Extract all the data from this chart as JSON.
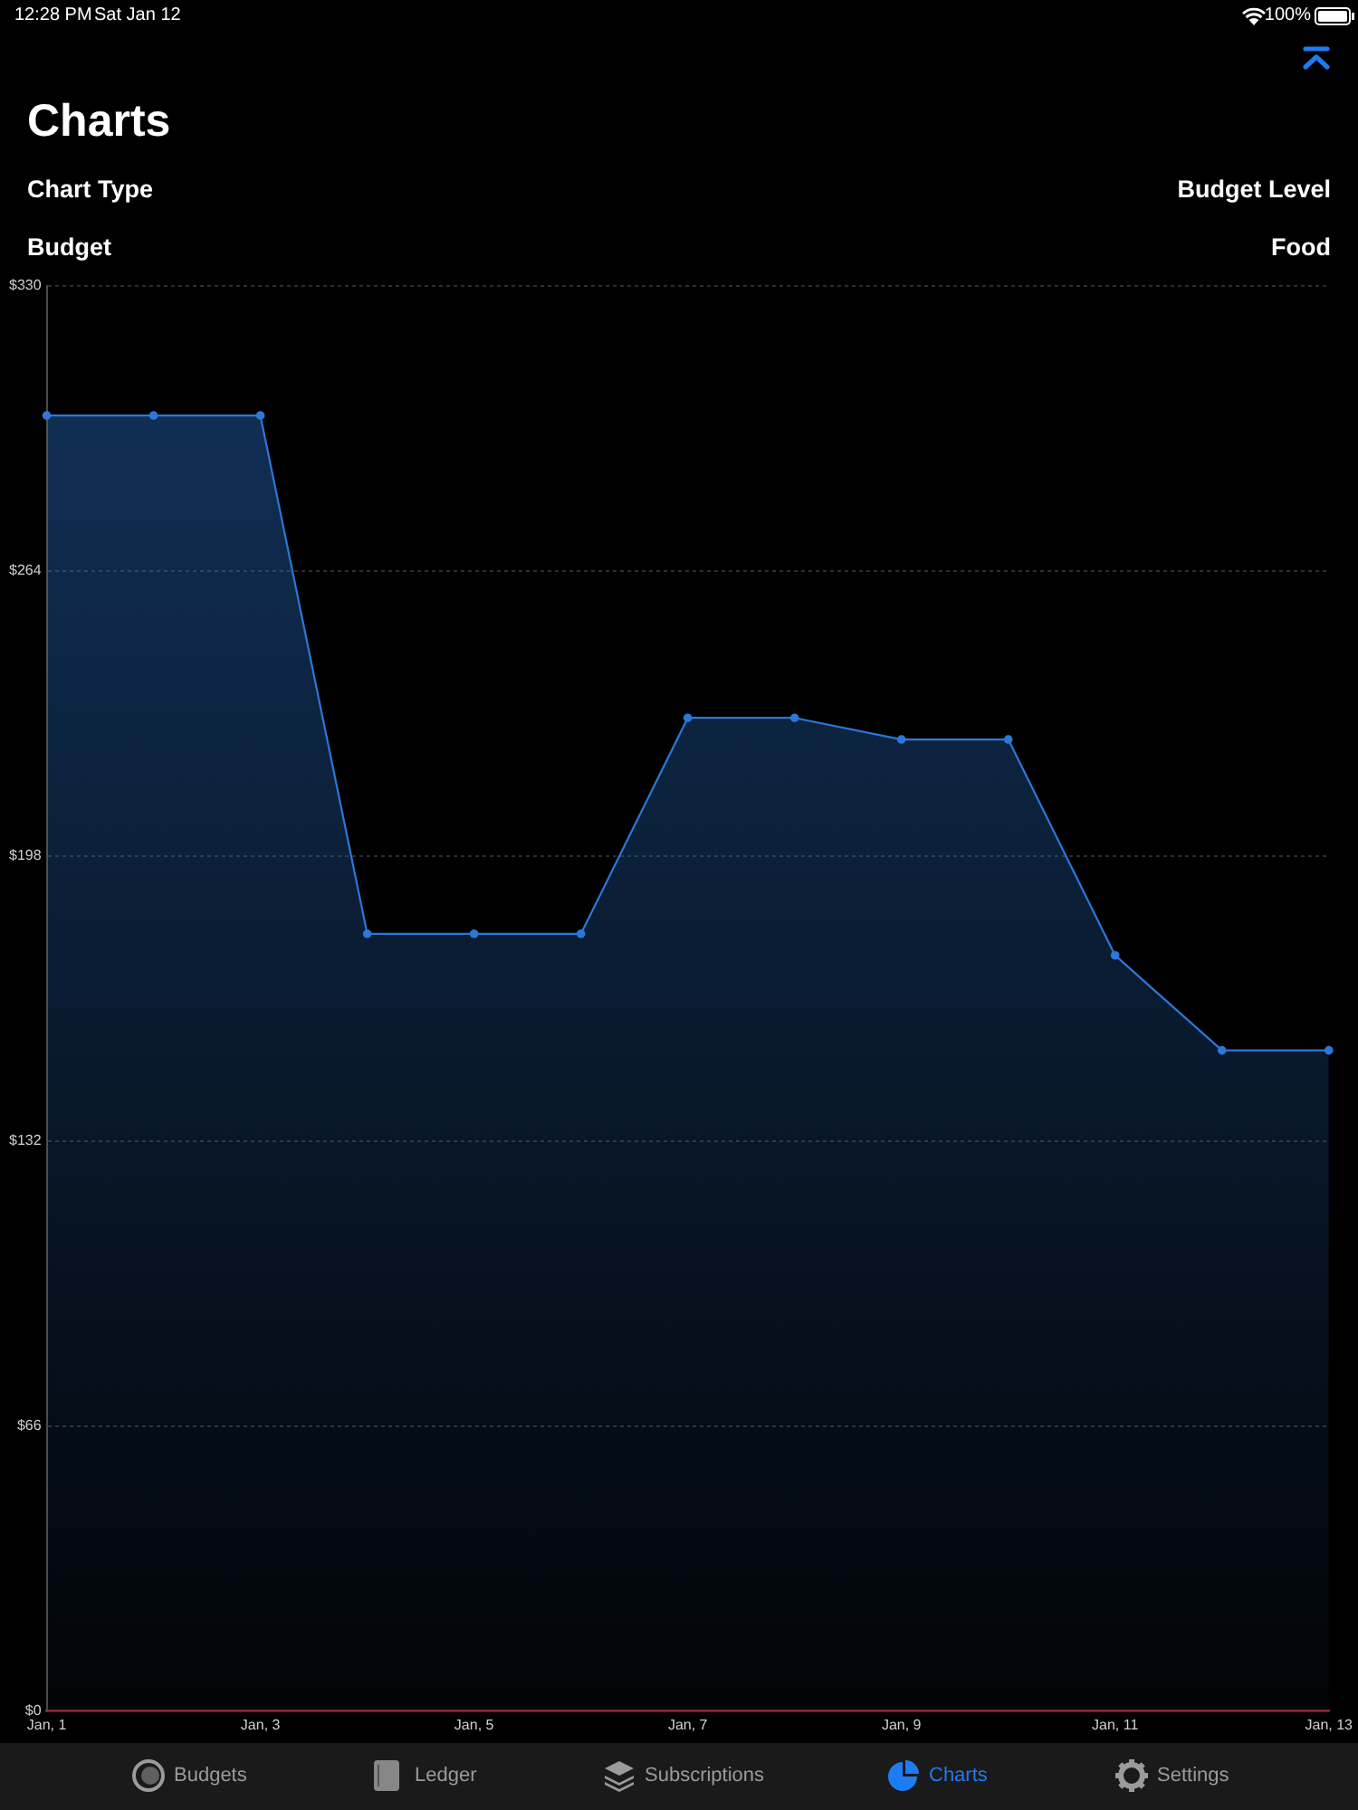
{
  "chart_data": {
    "type": "area",
    "title": "Charts",
    "annotations": [
      "12:28 PM",
      "Sat Jan 12",
      "100%",
      "Chart Type",
      "Budget Level",
      "Budget",
      "Food",
      "Budgets",
      "Ledger",
      "Subscriptions",
      "Charts",
      "Settings"
    ],
    "categories": [
      "Jan, 1",
      null,
      "Jan, 3",
      null,
      "Jan, 5",
      null,
      "Jan, 7",
      null,
      "Jan, 9",
      null,
      "Jan, 11",
      null,
      "Jan, 13"
    ],
    "values": [
      300,
      300,
      300,
      180,
      180,
      180,
      230,
      230,
      225,
      225,
      175,
      153,
      153
    ],
    "color": "#2b78d8",
    "ylim": [
      0,
      330
    ],
    "yticks": [
      {
        "value": 0,
        "label": "$0"
      },
      {
        "value": 66,
        "label": "$66"
      },
      {
        "value": 132,
        "label": "$132"
      },
      {
        "value": 198,
        "label": "$198"
      },
      {
        "value": 264,
        "label": "$264"
      },
      {
        "value": 330,
        "label": "$330"
      }
    ],
    "grid": "y",
    "marker": "circle",
    "line_style": "solid"
  }
}
